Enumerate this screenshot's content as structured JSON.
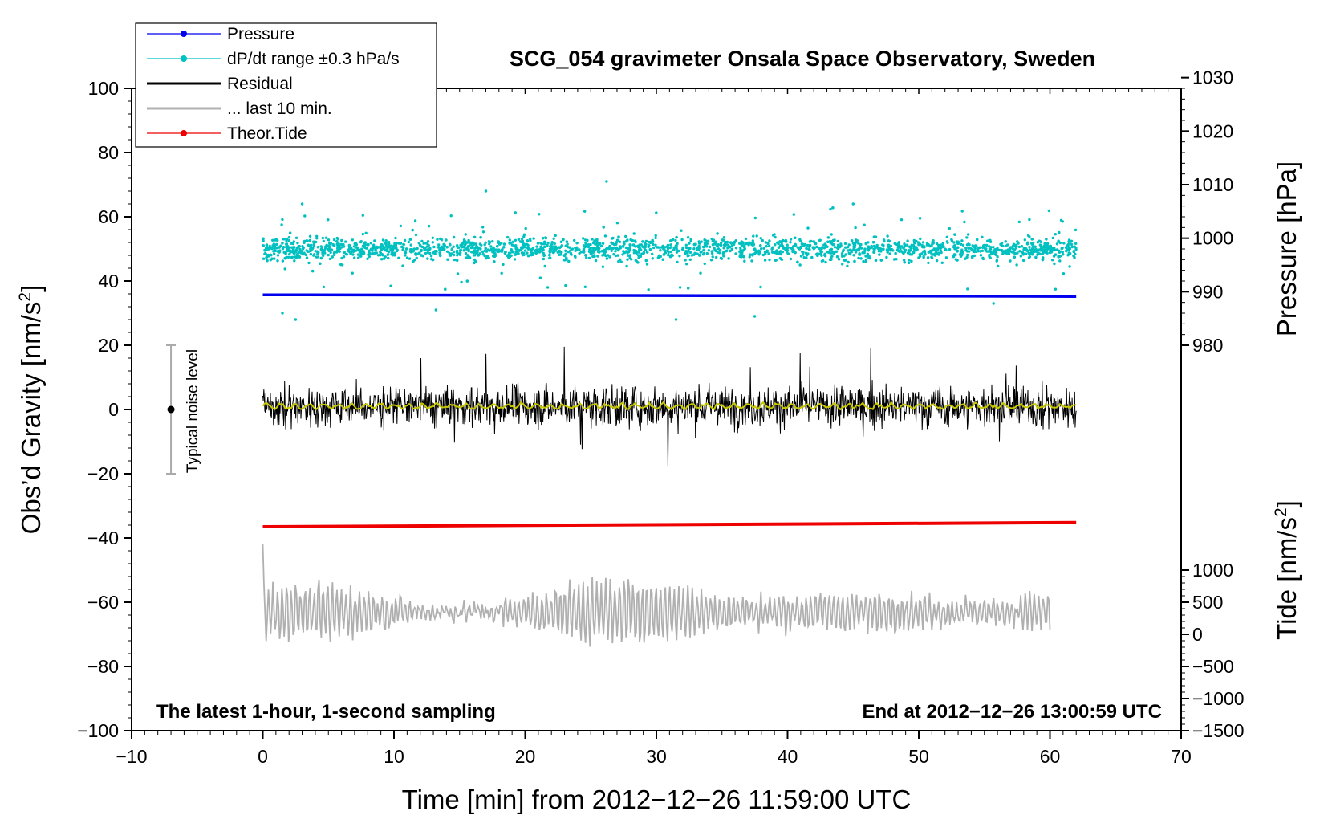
{
  "chart_data": {
    "type": "scatter",
    "title": "SCG_054 gravimeter Onsala Space Observatory, Sweden",
    "xlabel": "Time [min] from 2012−12−26 11:59:00 UTC",
    "ylabel_left": {
      "main": "Obs’d Gravity [nm/s",
      "sup": "2",
      "end": "]"
    },
    "ylabel_right_pressure": "Pressure [hPa]",
    "ylabel_right_tide": {
      "main": "Tide [nm/s",
      "sup": "2",
      "end": "]"
    },
    "xlim": [
      -10,
      70
    ],
    "ylim": [
      -100,
      100
    ],
    "x_ticks": [
      -10,
      0,
      10,
      20,
      30,
      40,
      50,
      60,
      70
    ],
    "x_tick_labels": [
      "−10",
      "0",
      "10",
      "20",
      "30",
      "40",
      "50",
      "60",
      "70"
    ],
    "y_ticks": [
      -100,
      -80,
      -60,
      -40,
      -20,
      0,
      20,
      40,
      60,
      80,
      100
    ],
    "y_tick_labels": [
      "−100",
      "−80",
      "−60",
      "−40",
      "−20",
      "0",
      "20",
      "40",
      "60",
      "80",
      "100"
    ],
    "pressure_axis": {
      "values": [
        980,
        990,
        1000,
        1010,
        1020,
        1030
      ],
      "labels": [
        "980",
        "990",
        "1000",
        "1010",
        "1020",
        "1030"
      ],
      "gravity_at_980": 20,
      "gravity_per_hpa": 1.6667
    },
    "tide_axis": {
      "values": [
        -1500,
        -1000,
        -500,
        0,
        500,
        1000
      ],
      "labels": [
        "−1500",
        "−1000",
        "−500",
        "0",
        "500",
        "1000"
      ],
      "gravity_at_minus1500": -100,
      "gravity_per_unit": 0.02
    },
    "legend": {
      "position": "top-left",
      "entries": [
        {
          "label": "Pressure",
          "color": "#0000ee",
          "marker": "dot"
        },
        {
          "label": "dP/dt range ±0.3 hPa/s",
          "color": "#00c0c0",
          "marker": "dot"
        },
        {
          "label": "Residual",
          "color": "#000000",
          "marker": "line"
        },
        {
          "label": "... last 10 min.",
          "color": "#b0b0b0",
          "marker": "line"
        },
        {
          "label": "Theor.Tide",
          "color": "#ee0000",
          "marker": "dot"
        }
      ]
    },
    "annotations": {
      "bottom_left": "The latest 1-hour, 1-second sampling",
      "bottom_right": "End at 2012−12−26 13:00:59 UTC",
      "noise_label": "Typical noise level"
    },
    "noise_bar": {
      "x": -7,
      "center": 0,
      "low": -20,
      "high": 20
    },
    "series": [
      {
        "name": "Pressure",
        "color": "#0000ee",
        "x_range": [
          0,
          62
        ],
        "start": 35.7,
        "end": 35.2
      },
      {
        "name": "dP/dt range",
        "color": "#00c0c0",
        "x_range": [
          0,
          62
        ],
        "center": 50,
        "spread": 3,
        "outliers_range": [
          28,
          71
        ]
      },
      {
        "name": "Residual",
        "color": "#000000",
        "x_range": [
          0,
          62
        ],
        "center": 1,
        "amplitude": 14,
        "extremes": [
          -20,
          21
        ]
      },
      {
        "name": "Residual smoothed",
        "color": "#c8c800",
        "x_range": [
          0,
          62
        ],
        "center": 1
      },
      {
        "name": "... last 10 min.",
        "color": "#b0b0b0",
        "x_range": [
          0,
          60
        ],
        "center": -63,
        "amplitude": 10,
        "extremes": [
          -82,
          -42
        ]
      },
      {
        "name": "Theor.Tide",
        "color": "#ee0000",
        "x_range": [
          0,
          62
        ],
        "start": -36.5,
        "end": -35.2
      }
    ]
  }
}
